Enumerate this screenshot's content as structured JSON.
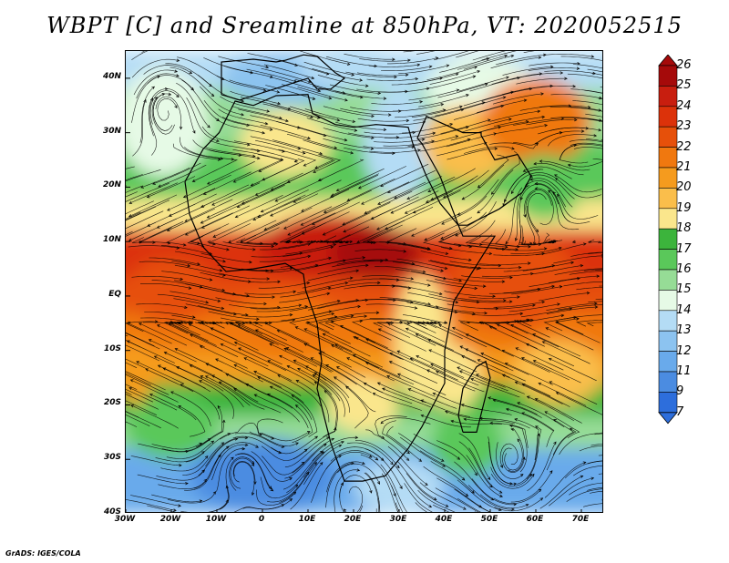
{
  "title": "WBPT [C] and Sreamline at 850hPa, VT: 2020052515",
  "credit": "GrADS: IGES/COLA",
  "map": {
    "lon_range": [
      -30,
      75
    ],
    "lat_range": [
      -40,
      45
    ],
    "lat_ticks": [
      {
        "value": 40,
        "label": "40N"
      },
      {
        "value": 30,
        "label": "30N"
      },
      {
        "value": 20,
        "label": "20N"
      },
      {
        "value": 10,
        "label": "10N"
      },
      {
        "value": 0,
        "label": "EQ"
      },
      {
        "value": -10,
        "label": "10S"
      },
      {
        "value": -20,
        "label": "20S"
      },
      {
        "value": -30,
        "label": "30S"
      },
      {
        "value": -40,
        "label": "40S"
      }
    ],
    "lon_ticks": [
      {
        "value": -30,
        "label": "30W"
      },
      {
        "value": -20,
        "label": "20W"
      },
      {
        "value": -10,
        "label": "10W"
      },
      {
        "value": 0,
        "label": "0"
      },
      {
        "value": 10,
        "label": "10E"
      },
      {
        "value": 20,
        "label": "20E"
      },
      {
        "value": 30,
        "label": "30E"
      },
      {
        "value": 40,
        "label": "40E"
      },
      {
        "value": 50,
        "label": "50E"
      },
      {
        "value": 60,
        "label": "60E"
      },
      {
        "value": 70,
        "label": "70E"
      }
    ]
  },
  "colorbar": {
    "labels": [
      "26",
      "25",
      "24",
      "23",
      "22",
      "21",
      "20",
      "19",
      "18",
      "17",
      "16",
      "15",
      "14",
      "13",
      "12",
      "11",
      "9",
      "7"
    ],
    "colors": [
      "#a50a0a",
      "#c81e0f",
      "#dc320a",
      "#e6500a",
      "#f0780f",
      "#f59b1e",
      "#fabe4b",
      "#fae68c",
      "#3cb43c",
      "#5ac85a",
      "#96dc96",
      "#e6fae6",
      "#b4dcf5",
      "#8cc3f0",
      "#69aaeb",
      "#4b8ce1",
      "#2d6edc"
    ]
  }
}
